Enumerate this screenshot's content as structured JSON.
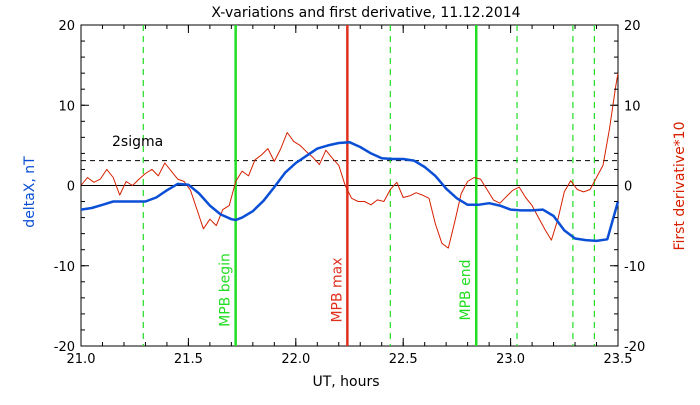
{
  "chart_data": {
    "type": "line",
    "title": "X-variations and first derivative, 11.12.2014",
    "xlabel": "UT, hours",
    "ylabel_left": "deltaX, nT",
    "ylabel_right": "First derivative*10",
    "xlim": [
      21.0,
      23.5
    ],
    "ylim": [
      -20,
      20
    ],
    "x_ticks": [
      "21.0",
      "21.5",
      "22.0",
      "22.5",
      "23.0",
      "23.5"
    ],
    "y_ticks_left": [
      "-20",
      "-10",
      "0",
      "10",
      "20"
    ],
    "y_ticks_right": [
      "-20",
      "-10",
      "0",
      "10",
      "20"
    ],
    "threshold": {
      "label": "2sigma",
      "value": 3.1
    },
    "colors": {
      "deltaX": "#0a4fd6",
      "derivative": "#d62000",
      "mpb": "#22dd22",
      "mpb_max": "#e0301e"
    },
    "series": [
      {
        "name": "deltaX, nT",
        "x": [
          21.0,
          21.05,
          21.1,
          21.15,
          21.2,
          21.25,
          21.3,
          21.35,
          21.4,
          21.45,
          21.5,
          21.55,
          21.6,
          21.65,
          21.7,
          21.72,
          21.75,
          21.8,
          21.85,
          21.9,
          21.95,
          22.0,
          22.05,
          22.1,
          22.15,
          22.2,
          22.25,
          22.3,
          22.35,
          22.4,
          22.45,
          22.5,
          22.55,
          22.6,
          22.65,
          22.7,
          22.75,
          22.8,
          22.85,
          22.9,
          22.95,
          23.0,
          23.05,
          23.1,
          23.15,
          23.2,
          23.25,
          23.3,
          23.35,
          23.4,
          23.45,
          23.5
        ],
        "y": [
          -3.0,
          -2.8,
          -2.4,
          -2.0,
          -2.0,
          -2.0,
          -2.0,
          -1.5,
          -0.6,
          0.2,
          0.1,
          -1.0,
          -2.5,
          -3.6,
          -4.2,
          -4.3,
          -4.0,
          -3.2,
          -1.9,
          -0.2,
          1.6,
          2.8,
          3.7,
          4.6,
          5.0,
          5.3,
          5.4,
          4.8,
          4.0,
          3.4,
          3.3,
          3.3,
          3.1,
          2.3,
          1.2,
          -0.4,
          -1.6,
          -2.4,
          -2.4,
          -2.2,
          -2.5,
          -3.0,
          -3.1,
          -3.1,
          -3.0,
          -3.8,
          -5.6,
          -6.6,
          -6.8,
          -6.9,
          -6.7,
          -2.0
        ]
      },
      {
        "name": "First derivative*10",
        "x": [
          21.0,
          21.03,
          21.06,
          21.09,
          21.12,
          21.15,
          21.18,
          21.21,
          21.24,
          21.27,
          21.3,
          21.33,
          21.36,
          21.39,
          21.42,
          21.45,
          21.48,
          21.51,
          21.54,
          21.57,
          21.6,
          21.63,
          21.66,
          21.69,
          21.72,
          21.75,
          21.78,
          21.81,
          21.84,
          21.87,
          21.9,
          21.93,
          21.96,
          21.99,
          22.02,
          22.05,
          22.08,
          22.11,
          22.14,
          22.17,
          22.2,
          22.23,
          22.26,
          22.29,
          22.32,
          22.35,
          22.38,
          22.41,
          22.44,
          22.47,
          22.5,
          22.53,
          22.56,
          22.59,
          22.62,
          22.65,
          22.68,
          22.71,
          22.74,
          22.77,
          22.8,
          22.83,
          22.86,
          22.89,
          22.92,
          22.95,
          22.98,
          23.01,
          23.04,
          23.07,
          23.1,
          23.13,
          23.16,
          23.19,
          23.22,
          23.25,
          23.28,
          23.31,
          23.34,
          23.37,
          23.4,
          23.43,
          23.46,
          23.49,
          23.5
        ],
        "y": [
          0.0,
          1.0,
          0.4,
          0.8,
          2.0,
          1.0,
          -1.2,
          0.5,
          0.0,
          0.8,
          1.5,
          2.0,
          1.2,
          2.8,
          1.8,
          0.8,
          0.5,
          -0.6,
          -3.0,
          -5.4,
          -4.2,
          -5.0,
          -3.0,
          -2.5,
          0.5,
          1.8,
          1.2,
          3.2,
          3.8,
          4.6,
          3.0,
          4.6,
          6.6,
          5.5,
          5.0,
          4.2,
          3.5,
          2.6,
          4.4,
          3.4,
          2.5,
          0.0,
          -1.6,
          -2.0,
          -2.0,
          -2.4,
          -1.8,
          -2.0,
          -0.5,
          0.4,
          -1.5,
          -1.3,
          -0.9,
          -1.2,
          -1.6,
          -4.8,
          -7.2,
          -7.8,
          -4.5,
          -1.0,
          0.5,
          1.0,
          0.8,
          -0.5,
          -1.8,
          -2.2,
          -1.4,
          -0.6,
          -0.2,
          -1.5,
          -2.5,
          -4.0,
          -5.5,
          -6.8,
          -4.2,
          -0.8,
          0.6,
          -0.5,
          -0.8,
          -0.5,
          1.0,
          2.5,
          7.0,
          12.5,
          14.0
        ]
      }
    ],
    "vertical_lines": [
      {
        "x": 21.29,
        "style": "dashed",
        "color": "#22dd22",
        "label": ""
      },
      {
        "x": 21.72,
        "style": "solid",
        "color": "#22dd22",
        "label": "MPB begin"
      },
      {
        "x": 22.24,
        "style": "solid",
        "color": "#e0301e",
        "label": "MPB max"
      },
      {
        "x": 22.44,
        "style": "dashed",
        "color": "#22dd22",
        "label": ""
      },
      {
        "x": 22.84,
        "style": "solid",
        "color": "#22dd22",
        "label": "MPB end"
      },
      {
        "x": 23.03,
        "style": "dashed",
        "color": "#22dd22",
        "label": ""
      },
      {
        "x": 23.29,
        "style": "dashed",
        "color": "#22dd22",
        "label": ""
      },
      {
        "x": 23.39,
        "style": "dashed",
        "color": "#22dd22",
        "label": ""
      }
    ],
    "grid": false,
    "legend": "none"
  }
}
